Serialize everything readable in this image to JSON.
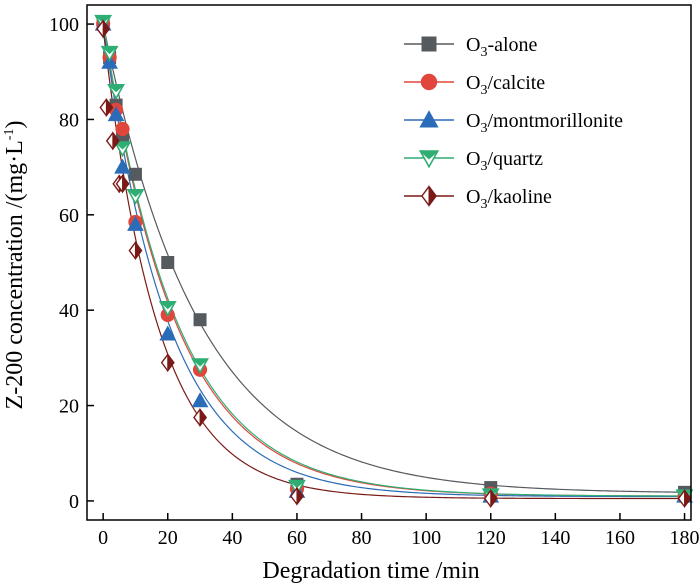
{
  "chart_data": {
    "type": "scatter",
    "xlabel": "Degradation time /min",
    "ylabel_main": "Z-200 concentration /(mg·L",
    "ylabel_sup": "-1",
    "ylabel_close": ")",
    "xlim": [
      -5,
      182
    ],
    "ylim": [
      -4,
      104
    ],
    "x_ticks": [
      0,
      20,
      40,
      60,
      80,
      100,
      120,
      140,
      160,
      180
    ],
    "y_ticks": [
      0,
      20,
      40,
      60,
      80,
      100
    ],
    "legend_position": "top-right",
    "fit_curves": true,
    "series": [
      {
        "name": "O3-alone",
        "legend_prefix": "O",
        "legend_sub": "3",
        "legend_suffix": "-alone",
        "marker": "square",
        "color": "#555a5e",
        "x": [
          0,
          2,
          4,
          6,
          10,
          20,
          30,
          60,
          120,
          180
        ],
        "y": [
          100,
          93,
          83,
          76,
          68.5,
          50,
          38,
          3.5,
          2.8,
          1.8
        ],
        "fit": {
          "c": 1.6,
          "a": 98.4,
          "k": 0.0338
        }
      },
      {
        "name": "O3/calcite",
        "legend_prefix": "O",
        "legend_sub": "3",
        "legend_suffix": "/calcite",
        "marker": "circle",
        "color": "#e0463c",
        "x": [
          0,
          2,
          4,
          6,
          10,
          20,
          30,
          60,
          120,
          180
        ],
        "y": [
          100,
          93,
          82,
          78,
          58.5,
          39,
          27.5,
          2.5,
          1.5,
          1
        ],
        "fit": {
          "c": 1.0,
          "a": 99.0,
          "k": 0.0445
        }
      },
      {
        "name": "O3/montmorillonite",
        "legend_prefix": "O",
        "legend_sub": "3",
        "legend_suffix": "/montmorillonite",
        "marker": "triangle",
        "color": "#2b6cb8",
        "x": [
          0,
          2,
          4,
          6,
          10,
          20,
          30,
          60,
          120,
          180
        ],
        "y": [
          100,
          92,
          81,
          70,
          58,
          35,
          21,
          2,
          1,
          1
        ],
        "fit": {
          "c": 0.9,
          "a": 99.1,
          "k": 0.0495
        }
      },
      {
        "name": "O3/quartz",
        "legend_prefix": "O",
        "legend_sub": "3",
        "legend_suffix": "/quartz",
        "marker": "triangle-down",
        "color": "#2fae74",
        "x": [
          0,
          2,
          4,
          6,
          10,
          20,
          30,
          60,
          120,
          180
        ],
        "y": [
          100.5,
          94,
          86,
          74,
          64,
          40.5,
          28.5,
          3,
          1.2,
          1
        ],
        "fit": {
          "c": 1.0,
          "a": 99.5,
          "k": 0.0438
        }
      },
      {
        "name": "O3/kaoline",
        "legend_prefix": "O",
        "legend_sub": "3",
        "legend_suffix": "/kaoline",
        "marker": "diamond",
        "color": "#7a1a16",
        "x": [
          0,
          1,
          3,
          5,
          6,
          10,
          20,
          30,
          60,
          120,
          180
        ],
        "y": [
          99,
          82.5,
          75.5,
          66.5,
          66.5,
          52.5,
          29,
          17.5,
          1,
          0.5,
          0.5
        ],
        "fit": {
          "c": 0.5,
          "a": 98.5,
          "k": 0.059
        }
      }
    ]
  }
}
